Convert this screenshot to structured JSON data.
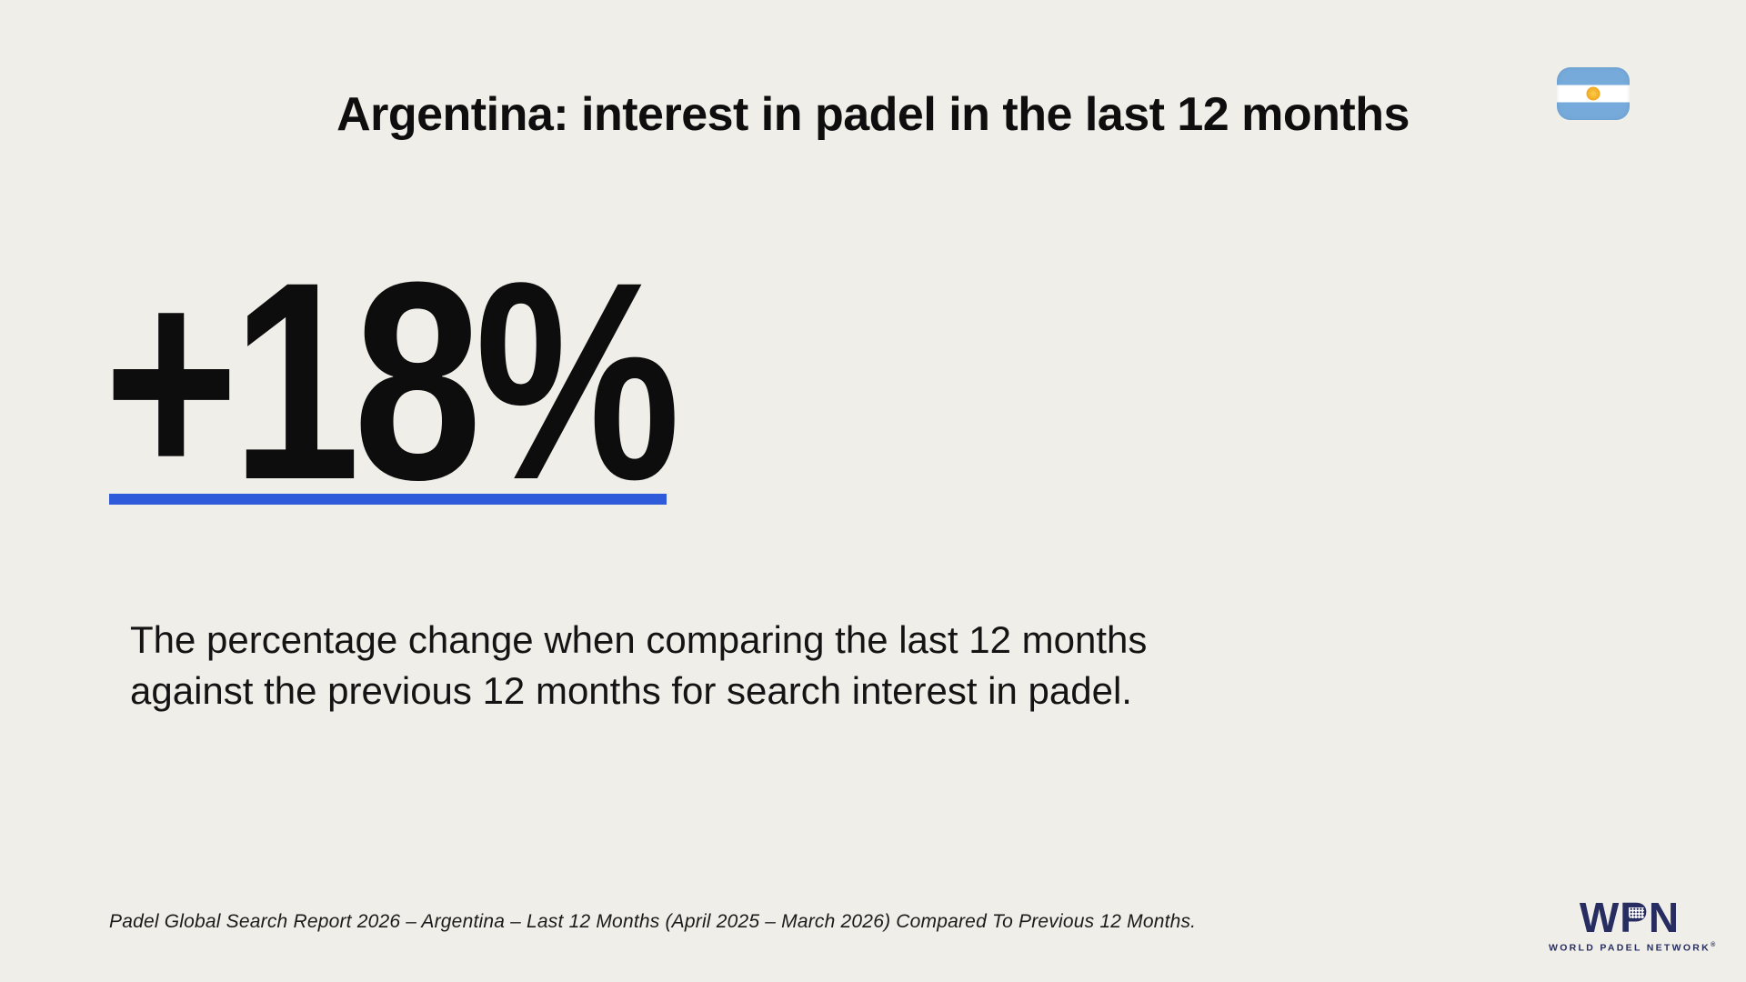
{
  "slide": {
    "title": "Argentina: interest in padel in the last 12 months",
    "stat": {
      "value": "+18%",
      "description_line1": "The percentage change when comparing the last 12 months",
      "description_line2": "against the previous 12 months for search interest in padel."
    },
    "source_note": "Padel Global Search Report 2026 – Argentina – Last 12 Months (April 2025 – March 2026) Compared To Previous 12 Months.",
    "flag": {
      "icon": "argentina-flag",
      "stripe_blue": "#75AADB",
      "stripe_white": "#FFFFFF",
      "sun_gold": "#F6B40E"
    },
    "logo": {
      "acronym": "WPN",
      "subtitle": "WORLD PADEL NETWORK",
      "trademark": "®",
      "navy": "#272D60"
    },
    "colors": {
      "background": "#F0EEE8",
      "text": "#111111",
      "accent_blue": "#2F5BDB"
    }
  }
}
